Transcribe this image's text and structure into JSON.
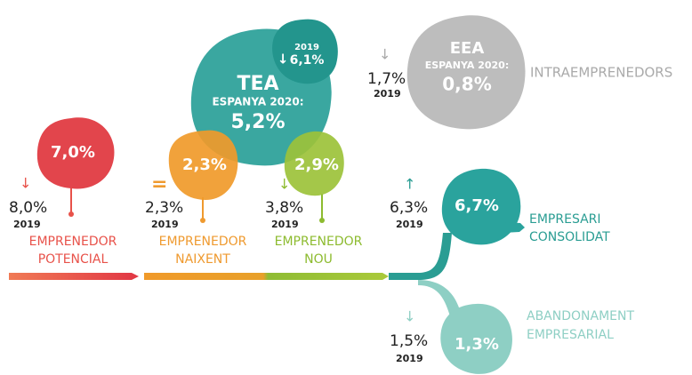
{
  "stages": [
    {
      "value": "7,0%",
      "previous": "8,0%",
      "year": "2019",
      "label_lines": [
        "EMPRENEDOR",
        "POTENCIAL"
      ]
    },
    {
      "value": "2,3%",
      "previous": "2,3%",
      "year": "2019",
      "label_lines": [
        "EMPRENEDOR",
        "NAIXENT"
      ]
    },
    {
      "value": "2,9%",
      "previous": "3,8%",
      "year": "2019",
      "label_lines": [
        "EMPRENEDOR",
        "NOU"
      ]
    },
    {
      "value": "6,7%",
      "previous": "6,3%",
      "year": "2019",
      "label_lines": [
        "EMPRESARI",
        "CONSOLIDAT"
      ]
    },
    {
      "value": "1,3%",
      "previous": "1,5%",
      "year": "2019",
      "label_lines": [
        "ABANDONAMENT",
        "EMPRESARIAL"
      ]
    }
  ],
  "tea": {
    "title": "TEA",
    "subtitle": "ESPANYA 2020:",
    "value": "5,2%",
    "previous_year": "2019",
    "previous": "6,1%"
  },
  "eea": {
    "title": "EEA",
    "subtitle": "ESPANYA 2020:",
    "value": "0,8%",
    "previous": "1,7%",
    "year": "2019",
    "label": "INTRAEMPRENEDORS"
  }
}
